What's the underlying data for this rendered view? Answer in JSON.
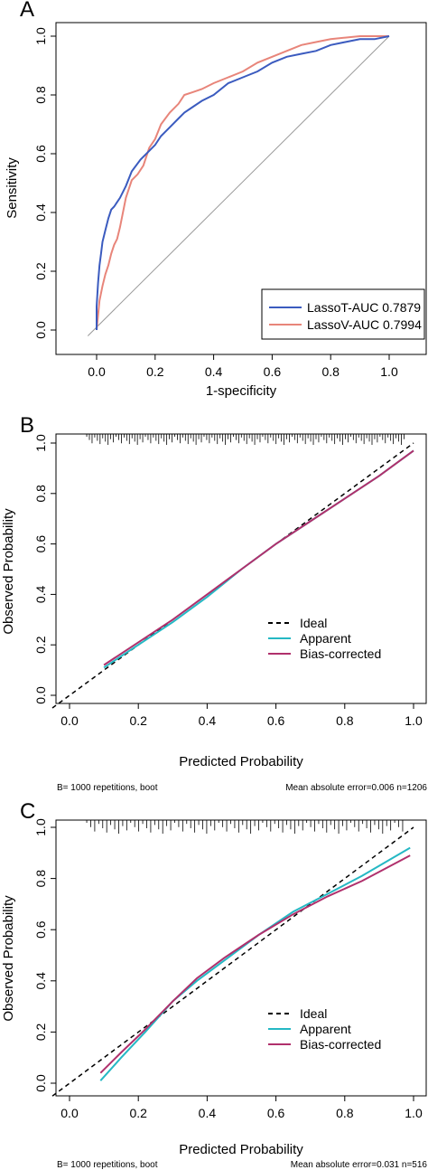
{
  "chart_data": [
    {
      "panel": "A",
      "type": "line",
      "xlabel": "1-specificity",
      "ylabel": "Sensitivity",
      "xlim": [
        -0.05,
        1.05
      ],
      "ylim": [
        0,
        1.03
      ],
      "xticks": [
        "0.0",
        "0.2",
        "0.4",
        "0.6",
        "0.8",
        "1.0"
      ],
      "yticks": [
        "0.0",
        "0.2",
        "0.4",
        "0.6",
        "0.8",
        "1.0"
      ],
      "legend_position": "bottom-right",
      "reference_line": [
        [
          -0.03,
          -0.02
        ],
        [
          1.0,
          1.0
        ]
      ],
      "series": [
        {
          "name": "LassoT-AUC 0.7879",
          "color": "#3b5bbf",
          "x": [
            0.0,
            0.0,
            0.005,
            0.01,
            0.015,
            0.02,
            0.03,
            0.04,
            0.05,
            0.06,
            0.08,
            0.1,
            0.12,
            0.15,
            0.18,
            0.2,
            0.22,
            0.25,
            0.28,
            0.3,
            0.33,
            0.36,
            0.4,
            0.45,
            0.5,
            0.55,
            0.6,
            0.65,
            0.7,
            0.75,
            0.8,
            0.85,
            0.9,
            0.95,
            1.0
          ],
          "y": [
            0.0,
            0.08,
            0.16,
            0.22,
            0.26,
            0.3,
            0.34,
            0.38,
            0.41,
            0.42,
            0.45,
            0.49,
            0.54,
            0.58,
            0.61,
            0.63,
            0.66,
            0.69,
            0.72,
            0.74,
            0.76,
            0.78,
            0.8,
            0.84,
            0.86,
            0.88,
            0.91,
            0.93,
            0.94,
            0.95,
            0.97,
            0.98,
            0.99,
            0.99,
            1.0
          ]
        },
        {
          "name": "LassoV-AUC 0.7994",
          "color": "#e8857a",
          "x": [
            0.0,
            0.005,
            0.01,
            0.02,
            0.03,
            0.04,
            0.05,
            0.06,
            0.07,
            0.08,
            0.1,
            0.12,
            0.14,
            0.16,
            0.18,
            0.2,
            0.22,
            0.25,
            0.28,
            0.3,
            0.33,
            0.36,
            0.4,
            0.45,
            0.5,
            0.55,
            0.6,
            0.65,
            0.7,
            0.75,
            0.8,
            0.85,
            0.9,
            0.95,
            1.0
          ],
          "y": [
            0.0,
            0.05,
            0.1,
            0.15,
            0.19,
            0.22,
            0.26,
            0.29,
            0.31,
            0.35,
            0.45,
            0.51,
            0.53,
            0.56,
            0.62,
            0.65,
            0.7,
            0.74,
            0.77,
            0.8,
            0.81,
            0.82,
            0.84,
            0.86,
            0.88,
            0.91,
            0.93,
            0.95,
            0.97,
            0.98,
            0.99,
            0.995,
            1.0,
            1.0,
            1.0
          ]
        }
      ]
    },
    {
      "panel": "B",
      "type": "line",
      "xlabel": "Predicted Probability",
      "ylabel": "Observed Probability",
      "xlim": [
        -0.05,
        1.05
      ],
      "ylim": [
        -0.02,
        1.02
      ],
      "xticks": [
        "0.0",
        "0.2",
        "0.4",
        "0.6",
        "0.8",
        "1.0"
      ],
      "yticks": [
        "0.0",
        "0.2",
        "0.4",
        "0.6",
        "0.8",
        "1.0"
      ],
      "legend_position": "bottom-right",
      "footnote_left": "B= 1000 repetitions, boot",
      "footnote_right": "Mean absolute error=0.006 n=1206",
      "rug_density": "dense",
      "series": [
        {
          "name": "Ideal",
          "color": "#000000",
          "style": "dashed",
          "x": [
            -0.05,
            1.0
          ],
          "y": [
            -0.05,
            1.0
          ]
        },
        {
          "name": "Apparent",
          "color": "#25b8c4",
          "x": [
            0.1,
            0.2,
            0.3,
            0.4,
            0.5,
            0.6,
            0.7,
            0.8,
            0.9,
            1.0
          ],
          "y": [
            0.11,
            0.2,
            0.29,
            0.39,
            0.5,
            0.6,
            0.69,
            0.78,
            0.87,
            0.97
          ]
        },
        {
          "name": "Bias-corrected",
          "color": "#b0306c",
          "x": [
            0.1,
            0.2,
            0.3,
            0.4,
            0.5,
            0.6,
            0.7,
            0.8,
            0.9,
            1.0
          ],
          "y": [
            0.12,
            0.21,
            0.3,
            0.4,
            0.5,
            0.6,
            0.69,
            0.78,
            0.87,
            0.97
          ]
        }
      ]
    },
    {
      "panel": "C",
      "type": "line",
      "xlabel": "Predicted Probability",
      "ylabel": "Observed Probability",
      "xlim": [
        -0.05,
        1.05
      ],
      "ylim": [
        -0.02,
        1.02
      ],
      "xticks": [
        "0.0",
        "0.2",
        "0.4",
        "0.6",
        "0.8",
        "1.0"
      ],
      "yticks": [
        "0.0",
        "0.2",
        "0.4",
        "0.6",
        "0.8",
        "1.0"
      ],
      "legend_position": "bottom-right",
      "footnote_left": "B= 1000 repetitions, boot",
      "footnote_right": "Mean absolute error=0.031 n=516",
      "rug_density": "sparse",
      "series": [
        {
          "name": "Ideal",
          "color": "#000000",
          "style": "dashed",
          "x": [
            -0.05,
            1.0
          ],
          "y": [
            -0.05,
            1.0
          ]
        },
        {
          "name": "Apparent",
          "color": "#25b8c4",
          "x": [
            0.09,
            0.15,
            0.22,
            0.3,
            0.37,
            0.45,
            0.55,
            0.65,
            0.75,
            0.85,
            0.99
          ],
          "y": [
            0.01,
            0.1,
            0.2,
            0.32,
            0.4,
            0.48,
            0.58,
            0.67,
            0.74,
            0.81,
            0.92
          ]
        },
        {
          "name": "Bias-corrected",
          "color": "#b0306c",
          "x": [
            0.09,
            0.15,
            0.22,
            0.3,
            0.37,
            0.45,
            0.55,
            0.65,
            0.75,
            0.85,
            0.99
          ],
          "y": [
            0.04,
            0.12,
            0.21,
            0.32,
            0.41,
            0.49,
            0.58,
            0.66,
            0.73,
            0.79,
            0.89
          ]
        }
      ]
    }
  ],
  "panel_labels": [
    "A",
    "B",
    "C"
  ]
}
